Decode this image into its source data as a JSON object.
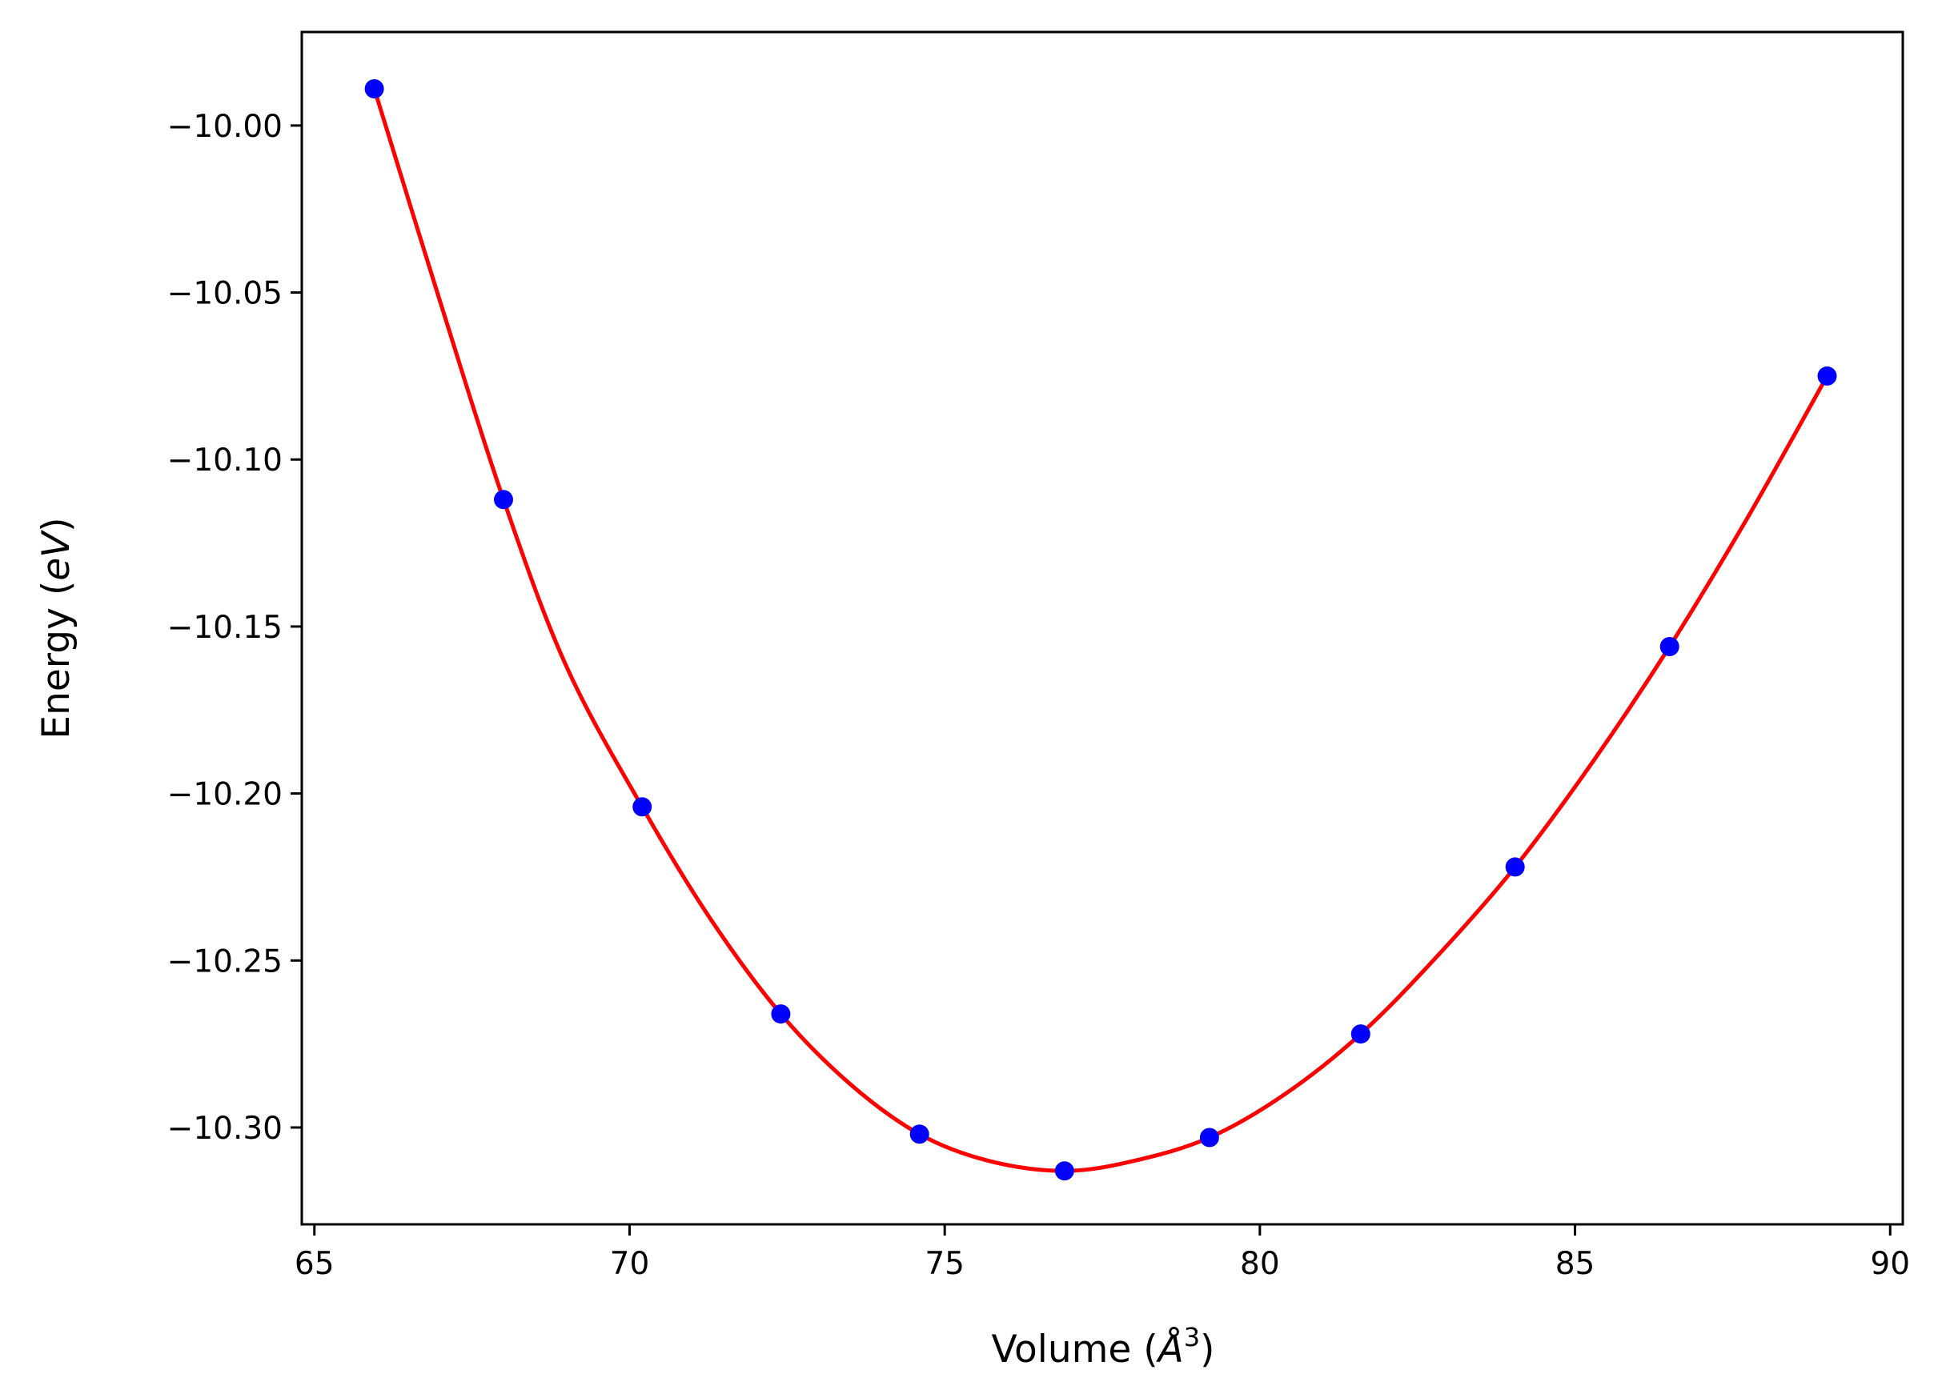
{
  "chart_data": {
    "type": "scatter",
    "title": "",
    "xlabel": "Volume ($\\AA^3$)",
    "xlabel_parts": {
      "prefix": "Volume (",
      "symbol": "Å",
      "superscript": "3",
      "suffix": ")"
    },
    "ylabel": "Energy ($eV$)",
    "ylabel_parts": {
      "prefix": "Energy (",
      "italic": "eV",
      "suffix": ")"
    },
    "xlim": [
      64.8,
      90.2
    ],
    "ylim": [
      -10.329,
      -9.972
    ],
    "xticks": [
      65,
      70,
      75,
      80,
      85,
      90
    ],
    "xtick_labels": [
      "65",
      "70",
      "75",
      "80",
      "85",
      "90"
    ],
    "yticks": [
      -10.0,
      -10.05,
      -10.1,
      -10.15,
      -10.2,
      -10.25,
      -10.3
    ],
    "ytick_labels": [
      "−10.00",
      "−10.05",
      "−10.10",
      "−10.15",
      "−10.20",
      "−10.25",
      "−10.30"
    ],
    "grid": false,
    "legend": "none",
    "series": [
      {
        "kind": "points",
        "color": "#0000ff",
        "x": [
          65.95,
          68.0,
          70.2,
          72.4,
          74.6,
          76.9,
          79.2,
          81.6,
          84.05,
          86.5,
          89.0
        ],
        "y": [
          -9.989,
          -10.112,
          -10.204,
          -10.266,
          -10.302,
          -10.313,
          -10.303,
          -10.272,
          -10.222,
          -10.156,
          -10.075
        ]
      },
      {
        "kind": "fit-curve",
        "color": "#ff0000",
        "x": [
          65.95,
          67.0,
          68.0,
          69.0,
          70.2,
          71.3,
          72.4,
          73.5,
          74.6,
          75.7,
          76.9,
          78.0,
          79.2,
          80.4,
          81.6,
          82.8,
          84.05,
          85.3,
          86.5,
          87.75,
          89.0
        ],
        "y": [
          -9.989,
          -10.053,
          -10.112,
          -10.162,
          -10.204,
          -10.238,
          -10.266,
          -10.287,
          -10.302,
          -10.31,
          -10.313,
          -10.31,
          -10.303,
          -10.29,
          -10.272,
          -10.249,
          -10.222,
          -10.19,
          -10.156,
          -10.117,
          -10.075
        ]
      }
    ]
  }
}
